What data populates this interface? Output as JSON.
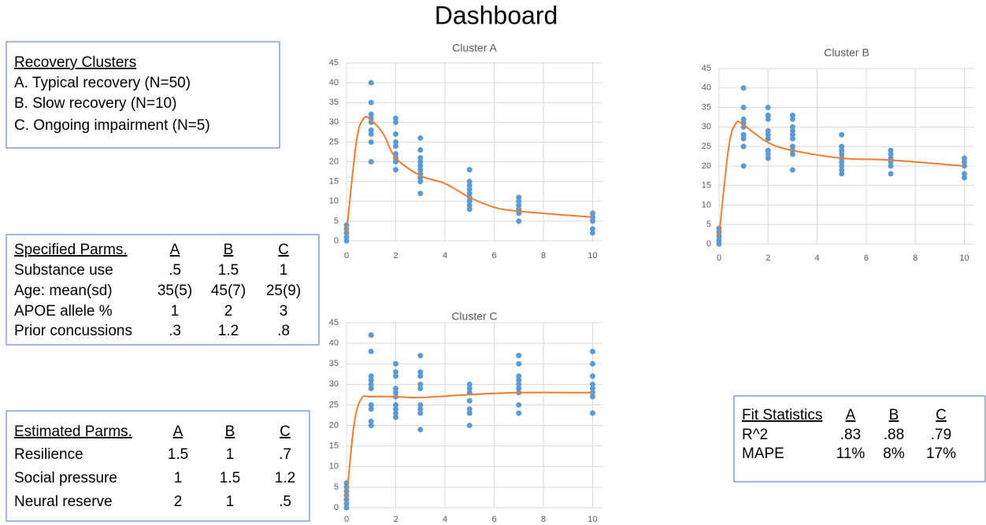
{
  "title": "Dashboard",
  "clusters_box": {
    "heading": "Recovery Clusters",
    "items": [
      "A.  Typical recovery (N=50)",
      "B.  Slow recovery (N=10)",
      "C.  Ongoing impairment (N=5)"
    ]
  },
  "specified_table": {
    "header": [
      "Specified Parms.",
      "A",
      "B",
      "C"
    ],
    "rows": [
      [
        "Substance use",
        ".5",
        "1.5",
        "1"
      ],
      [
        "Age: mean(sd)",
        "35(5)",
        "45(7)",
        "25(9)"
      ],
      [
        "APOE allele %",
        "1",
        "2",
        "3"
      ],
      [
        "Prior concussions",
        ".3",
        "1.2",
        ".8"
      ]
    ]
  },
  "estimated_table": {
    "header": [
      "Estimated Parms.",
      "A",
      "B",
      "C"
    ],
    "rows": [
      [
        "Resilience",
        "1.5",
        "1",
        ".7"
      ],
      [
        "Social pressure",
        "1",
        "1.5",
        "1.2"
      ],
      [
        "Neural reserve",
        "2",
        "1",
        ".5"
      ]
    ]
  },
  "fit_table": {
    "header": [
      "Fit Statistics",
      "A",
      "B",
      "C"
    ],
    "rows": [
      [
        "R^2",
        ".83",
        ".88",
        ".79"
      ],
      [
        "MAPE",
        "11%",
        "8%",
        "17%"
      ]
    ]
  },
  "chart_data": [
    {
      "type": "scatter",
      "title": "Cluster A",
      "grid": true,
      "xlim": [
        0,
        10.4
      ],
      "xticks": [
        0,
        2,
        4,
        6,
        8,
        10
      ],
      "ylim": [
        0,
        45
      ],
      "yticks": [
        0,
        5,
        10,
        15,
        20,
        25,
        30,
        35,
        40,
        45
      ],
      "series": [
        {
          "kind": "scatter",
          "color": "#5b9bd5",
          "x": [
            0,
            0,
            0,
            0,
            0,
            1,
            1,
            1,
            1,
            1,
            1,
            1,
            1,
            1,
            2,
            2,
            2,
            2,
            2,
            2,
            2,
            2,
            2,
            3,
            3,
            3,
            3,
            3,
            3,
            3,
            3,
            3,
            3,
            5,
            5,
            5,
            5,
            5,
            5,
            5,
            5,
            5,
            7,
            7,
            7,
            7,
            7,
            7,
            10,
            10,
            10,
            10,
            10
          ],
          "values": [
            0,
            1,
            2,
            3,
            4,
            40,
            35,
            32,
            31,
            30,
            28,
            27,
            25,
            20,
            31,
            30,
            27,
            25,
            24,
            22,
            21,
            20,
            18,
            26,
            23,
            21,
            20,
            19,
            18,
            17,
            16,
            15,
            12,
            18,
            15,
            14,
            13,
            12,
            11,
            10,
            9,
            8,
            11,
            10,
            9,
            8,
            7,
            5,
            7,
            6,
            5,
            3,
            2
          ]
        },
        {
          "kind": "line",
          "color": "#ed7d31",
          "x": [
            0,
            0.4,
            0.7,
            1,
            1.5,
            2,
            3,
            4,
            5,
            6,
            7,
            10
          ],
          "values": [
            2,
            25,
            31,
            30.5,
            27,
            21,
            16.5,
            14.5,
            11,
            8.5,
            7.5,
            6
          ]
        }
      ]
    },
    {
      "type": "scatter",
      "title": "Cluster B",
      "grid": true,
      "xlim": [
        0,
        10.4
      ],
      "xticks": [
        0,
        2,
        4,
        6,
        8,
        10
      ],
      "ylim": [
        0,
        45
      ],
      "yticks": [
        0,
        5,
        10,
        15,
        20,
        25,
        30,
        35,
        40,
        45
      ],
      "series": [
        {
          "kind": "scatter",
          "color": "#5b9bd5",
          "x": [
            0,
            0,
            0,
            0,
            0,
            1,
            1,
            1,
            1,
            1,
            1,
            1,
            1,
            1,
            2,
            2,
            2,
            2,
            2,
            2,
            2,
            2,
            2,
            3,
            3,
            3,
            3,
            3,
            3,
            3,
            3,
            3,
            3,
            5,
            5,
            5,
            5,
            5,
            5,
            5,
            5,
            5,
            7,
            7,
            7,
            7,
            7,
            7,
            10,
            10,
            10,
            10,
            10
          ],
          "values": [
            0,
            1,
            2,
            3,
            4,
            40,
            35,
            32,
            31,
            30,
            28,
            27,
            25,
            20,
            35,
            33,
            32,
            29,
            28,
            27,
            24,
            23,
            22,
            33,
            32,
            30,
            29,
            28,
            27,
            25,
            24,
            23,
            19,
            28,
            25,
            24,
            23,
            22,
            21,
            20,
            19,
            18,
            24,
            23,
            22,
            21,
            20,
            18,
            22,
            21,
            20,
            18,
            17
          ]
        },
        {
          "kind": "line",
          "color": "#ed7d31",
          "x": [
            0,
            0.4,
            0.7,
            1,
            2,
            3,
            5,
            7,
            10
          ],
          "values": [
            2,
            25,
            31,
            30.5,
            26,
            24,
            22,
            21.5,
            20
          ]
        }
      ]
    },
    {
      "type": "scatter",
      "title": "Cluster C",
      "grid": true,
      "xlim": [
        0,
        10.4
      ],
      "xticks": [
        0,
        2,
        4,
        6,
        8,
        10
      ],
      "ylim": [
        0,
        45
      ],
      "yticks": [
        0,
        5,
        10,
        15,
        20,
        25,
        30,
        35,
        40,
        45
      ],
      "series": [
        {
          "kind": "scatter",
          "color": "#5b9bd5",
          "x": [
            0,
            0,
            0,
            0,
            0,
            0,
            0,
            1,
            1,
            1,
            1,
            1,
            1,
            1,
            1,
            1,
            1,
            2,
            2,
            2,
            2,
            2,
            2,
            2,
            2,
            2,
            2,
            3,
            3,
            3,
            3,
            3,
            3,
            3,
            3,
            3,
            5,
            5,
            5,
            5,
            5,
            5,
            5,
            7,
            7,
            7,
            7,
            7,
            7,
            7,
            7,
            7,
            10,
            10,
            10,
            10,
            10,
            10,
            10,
            10
          ],
          "values": [
            0,
            1,
            2,
            3,
            4,
            5,
            6,
            42,
            38,
            32,
            31,
            30,
            29,
            25,
            24,
            21,
            20,
            35,
            33,
            32,
            29,
            28,
            27,
            25,
            24,
            23,
            22,
            37,
            33,
            32,
            30,
            29,
            25,
            24,
            23,
            19,
            30,
            29,
            28,
            26,
            24,
            23,
            20,
            37,
            35,
            32,
            31,
            30,
            29,
            28,
            25,
            23,
            38,
            35,
            32,
            30,
            29,
            28,
            27,
            23
          ]
        },
        {
          "kind": "line",
          "color": "#ed7d31",
          "x": [
            0,
            0.3,
            0.6,
            1,
            2,
            3,
            5,
            7,
            10
          ],
          "values": [
            2,
            20,
            26.5,
            27,
            27,
            26.8,
            27.5,
            28,
            28
          ]
        }
      ]
    }
  ]
}
